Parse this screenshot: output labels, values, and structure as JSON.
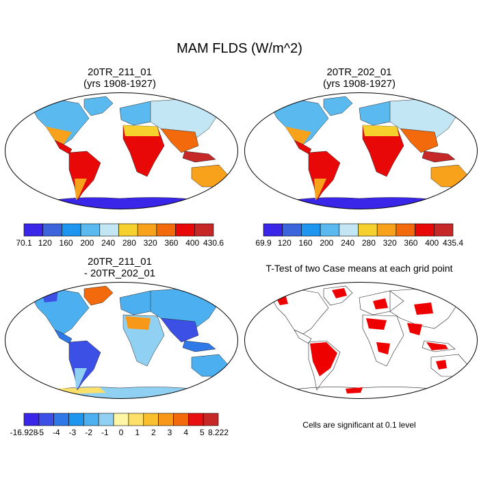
{
  "figure": {
    "title": "MAM FLDS (W/m^2)"
  },
  "panels": [
    {
      "id": "case1",
      "title_line1": "20TR_211_01",
      "title_line2": "(yrs 1908-1927)",
      "colorbar": {
        "labels": [
          "70.1",
          "120",
          "160",
          "200",
          "240",
          "280",
          "320",
          "360",
          "400",
          "430.6"
        ],
        "colors": [
          "#3a26e8",
          "#3c65db",
          "#1e96f0",
          "#5ab9ef",
          "#c3e6f5",
          "#f6d12e",
          "#f7a21a",
          "#f26a0c",
          "#e80808",
          "#c62828"
        ]
      }
    },
    {
      "id": "case2",
      "title_line1": "20TR_202_01",
      "title_line2": "(yrs 1908-1927)",
      "colorbar": {
        "labels": [
          "69.9",
          "120",
          "160",
          "200",
          "240",
          "280",
          "320",
          "360",
          "400",
          "435.4"
        ],
        "colors": [
          "#3a26e8",
          "#3c65db",
          "#1e96f0",
          "#5ab9ef",
          "#c3e6f5",
          "#f6d12e",
          "#f7a21a",
          "#f26a0c",
          "#e80808",
          "#c62828"
        ]
      }
    },
    {
      "id": "diff",
      "title_line1": "20TR_211_01",
      "title_line2": "- 20TR_202_01",
      "colorbar": {
        "labels": [
          "-16.928",
          "-5",
          "-4",
          "-3",
          "-2",
          "-1",
          "0",
          "1",
          "2",
          "3",
          "4",
          "5",
          "8.222"
        ],
        "colors": [
          "#3a26e8",
          "#3c50e6",
          "#2f78e8",
          "#1e96f0",
          "#4cb0f0",
          "#90d0f2",
          "#fff6a6",
          "#fde06a",
          "#f9bf2c",
          "#f79818",
          "#f26a0c",
          "#e81010",
          "#c62828"
        ]
      }
    },
    {
      "id": "ttest",
      "title": "T-Test of two Case means at each grid point",
      "note": "Cells are significant at 0.1 level",
      "sig_color": "#ee0000"
    }
  ]
}
